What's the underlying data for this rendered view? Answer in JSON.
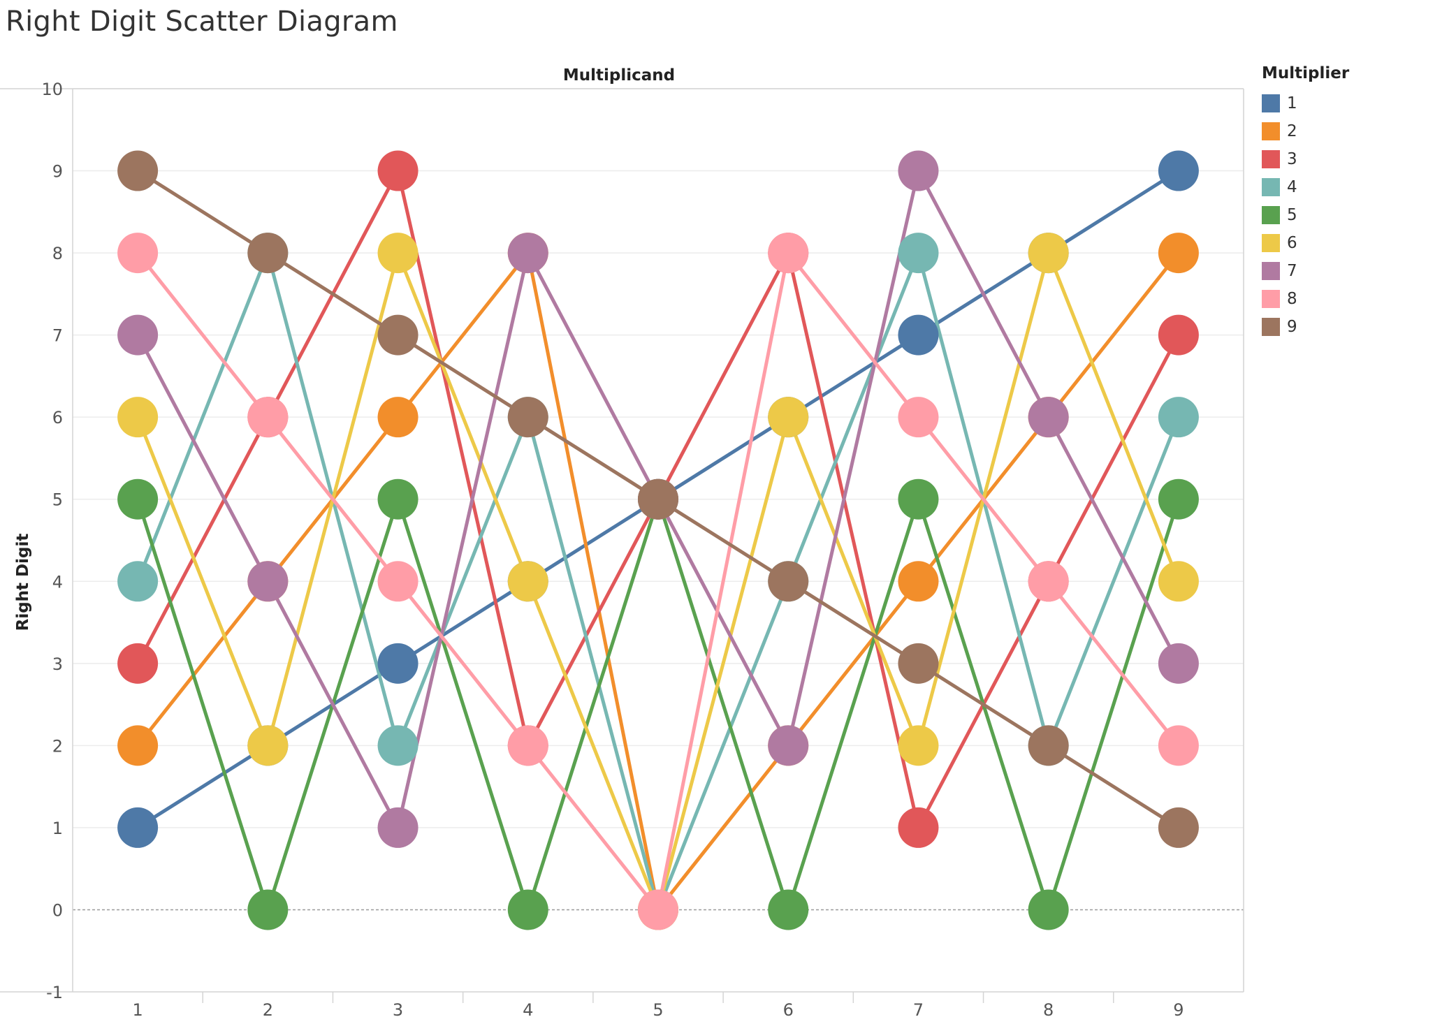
{
  "page_title": "Right Digit Scatter Diagram",
  "legend": {
    "title": "Multiplier"
  },
  "chart_data": {
    "type": "line",
    "title": "Right Digit Scatter Diagram",
    "xlabel": "Multiplicand",
    "ylabel": "Right Digit",
    "x": [
      1,
      2,
      3,
      4,
      5,
      6,
      7,
      8,
      9
    ],
    "x_ticks": [
      "1",
      "2",
      "3",
      "4",
      "5",
      "6",
      "7",
      "8",
      "9"
    ],
    "y_ticks": [
      "-1",
      "0",
      "1",
      "2",
      "3",
      "4",
      "5",
      "6",
      "7",
      "8",
      "9",
      "10"
    ],
    "ylim": [
      -1,
      10
    ],
    "xlim": [
      0.5,
      9.5
    ],
    "grid": true,
    "zero_line": "dashed",
    "markers": "large circles",
    "legend_position": "right",
    "series": [
      {
        "name": "1",
        "color": "#4e79a7",
        "values": [
          1,
          2,
          3,
          4,
          5,
          6,
          7,
          8,
          9
        ]
      },
      {
        "name": "2",
        "color": "#f28e2b",
        "values": [
          2,
          4,
          6,
          8,
          0,
          2,
          4,
          6,
          8
        ]
      },
      {
        "name": "3",
        "color": "#e15759",
        "values": [
          3,
          6,
          9,
          2,
          5,
          8,
          1,
          4,
          7
        ]
      },
      {
        "name": "4",
        "color": "#76b7b2",
        "values": [
          4,
          8,
          2,
          6,
          0,
          4,
          8,
          2,
          6
        ]
      },
      {
        "name": "5",
        "color": "#59a14f",
        "values": [
          5,
          0,
          5,
          0,
          5,
          0,
          5,
          0,
          5
        ]
      },
      {
        "name": "6",
        "color": "#edc948",
        "values": [
          6,
          2,
          8,
          4,
          0,
          6,
          2,
          8,
          4
        ]
      },
      {
        "name": "7",
        "color": "#b07aa1",
        "values": [
          7,
          4,
          1,
          8,
          5,
          2,
          9,
          6,
          3
        ]
      },
      {
        "name": "8",
        "color": "#ff9da7",
        "values": [
          8,
          6,
          4,
          2,
          0,
          8,
          6,
          4,
          2
        ]
      },
      {
        "name": "9",
        "color": "#9c755f",
        "values": [
          9,
          8,
          7,
          6,
          5,
          4,
          3,
          2,
          1
        ]
      }
    ]
  }
}
